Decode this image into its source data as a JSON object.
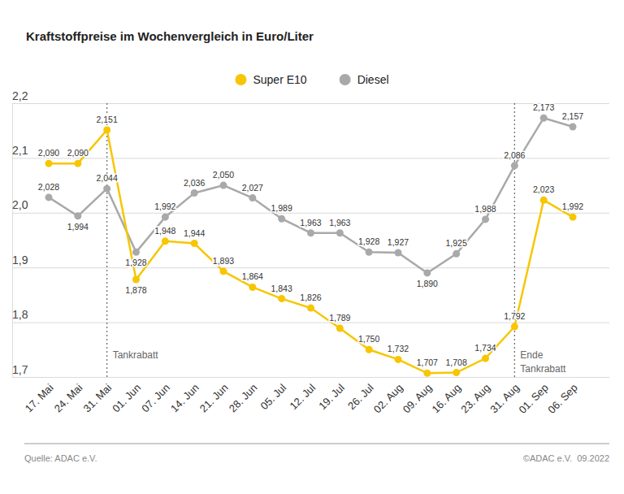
{
  "chart_data": {
    "type": "line",
    "title": "Kraftstoffpreise im Wochenvergleich in Euro/Liter",
    "categories": [
      "17. Mai",
      "24. Mai",
      "31. Mai",
      "01. Jun",
      "07. Jun",
      "14. Jun",
      "21. Jun",
      "28. Jun",
      "05. Jul",
      "12. Jul",
      "19. Jul",
      "26. Jul",
      "02. Aug",
      "09. Aug",
      "16. Aug",
      "23. Aug",
      "31. Aug",
      "01. Sep",
      "06. Sep"
    ],
    "series": [
      {
        "name": "Super E10",
        "color": "#f7c600",
        "marker": "circle",
        "line_style": "solid",
        "values": [
          2.09,
          2.09,
          2.151,
          1.878,
          1.948,
          1.944,
          1.893,
          1.864,
          1.843,
          1.826,
          1.789,
          1.75,
          1.732,
          1.707,
          1.708,
          1.734,
          1.792,
          2.023,
          1.992
        ],
        "value_labels": [
          "2,090",
          "2,090",
          "2,151",
          "1,878",
          "1,948",
          "1,944",
          "1,893",
          "1,864",
          "1,843",
          "1,826",
          "1,789",
          "1,750",
          "1,732",
          "1,707",
          "1,708",
          "1,734",
          "1,792",
          "2,023",
          "1,992"
        ]
      },
      {
        "name": "Diesel",
        "color": "#a9a9a9",
        "marker": "circle",
        "line_style": "solid",
        "values": [
          2.028,
          1.994,
          2.044,
          1.928,
          1.992,
          2.036,
          2.05,
          2.027,
          1.989,
          1.963,
          1.963,
          1.928,
          1.927,
          1.89,
          1.925,
          1.988,
          2.086,
          2.173,
          2.157
        ],
        "value_labels": [
          "2,028",
          "1,994",
          "2,044",
          "1,928",
          "1,992",
          "2,036",
          "2,050",
          "2,027",
          "1,989",
          "1,963",
          "1,963",
          "1,928",
          "1,927",
          "1,890",
          "1,925",
          "1,988",
          "2,086",
          "2,173",
          "2,157"
        ]
      }
    ],
    "ylim": [
      1.7,
      2.2
    ],
    "yticks": [
      {
        "value": 1.7,
        "label": "1,7"
      },
      {
        "value": 1.8,
        "label": "1,8"
      },
      {
        "value": 1.9,
        "label": "1,9"
      },
      {
        "value": 2.0,
        "label": "2,0"
      },
      {
        "value": 2.1,
        "label": "2,1"
      },
      {
        "value": 2.2,
        "label": "2,2"
      }
    ],
    "grid": true,
    "legend": "top",
    "data_labels": true,
    "annotations": [
      {
        "text": "Tankrabatt",
        "x": "31. Mai"
      },
      {
        "text": "Ende Tankrabatt",
        "x": "31. Aug"
      }
    ],
    "source": "Quelle: ADAC e.V.",
    "credit": "©ADAC e.V.  09.2022"
  }
}
